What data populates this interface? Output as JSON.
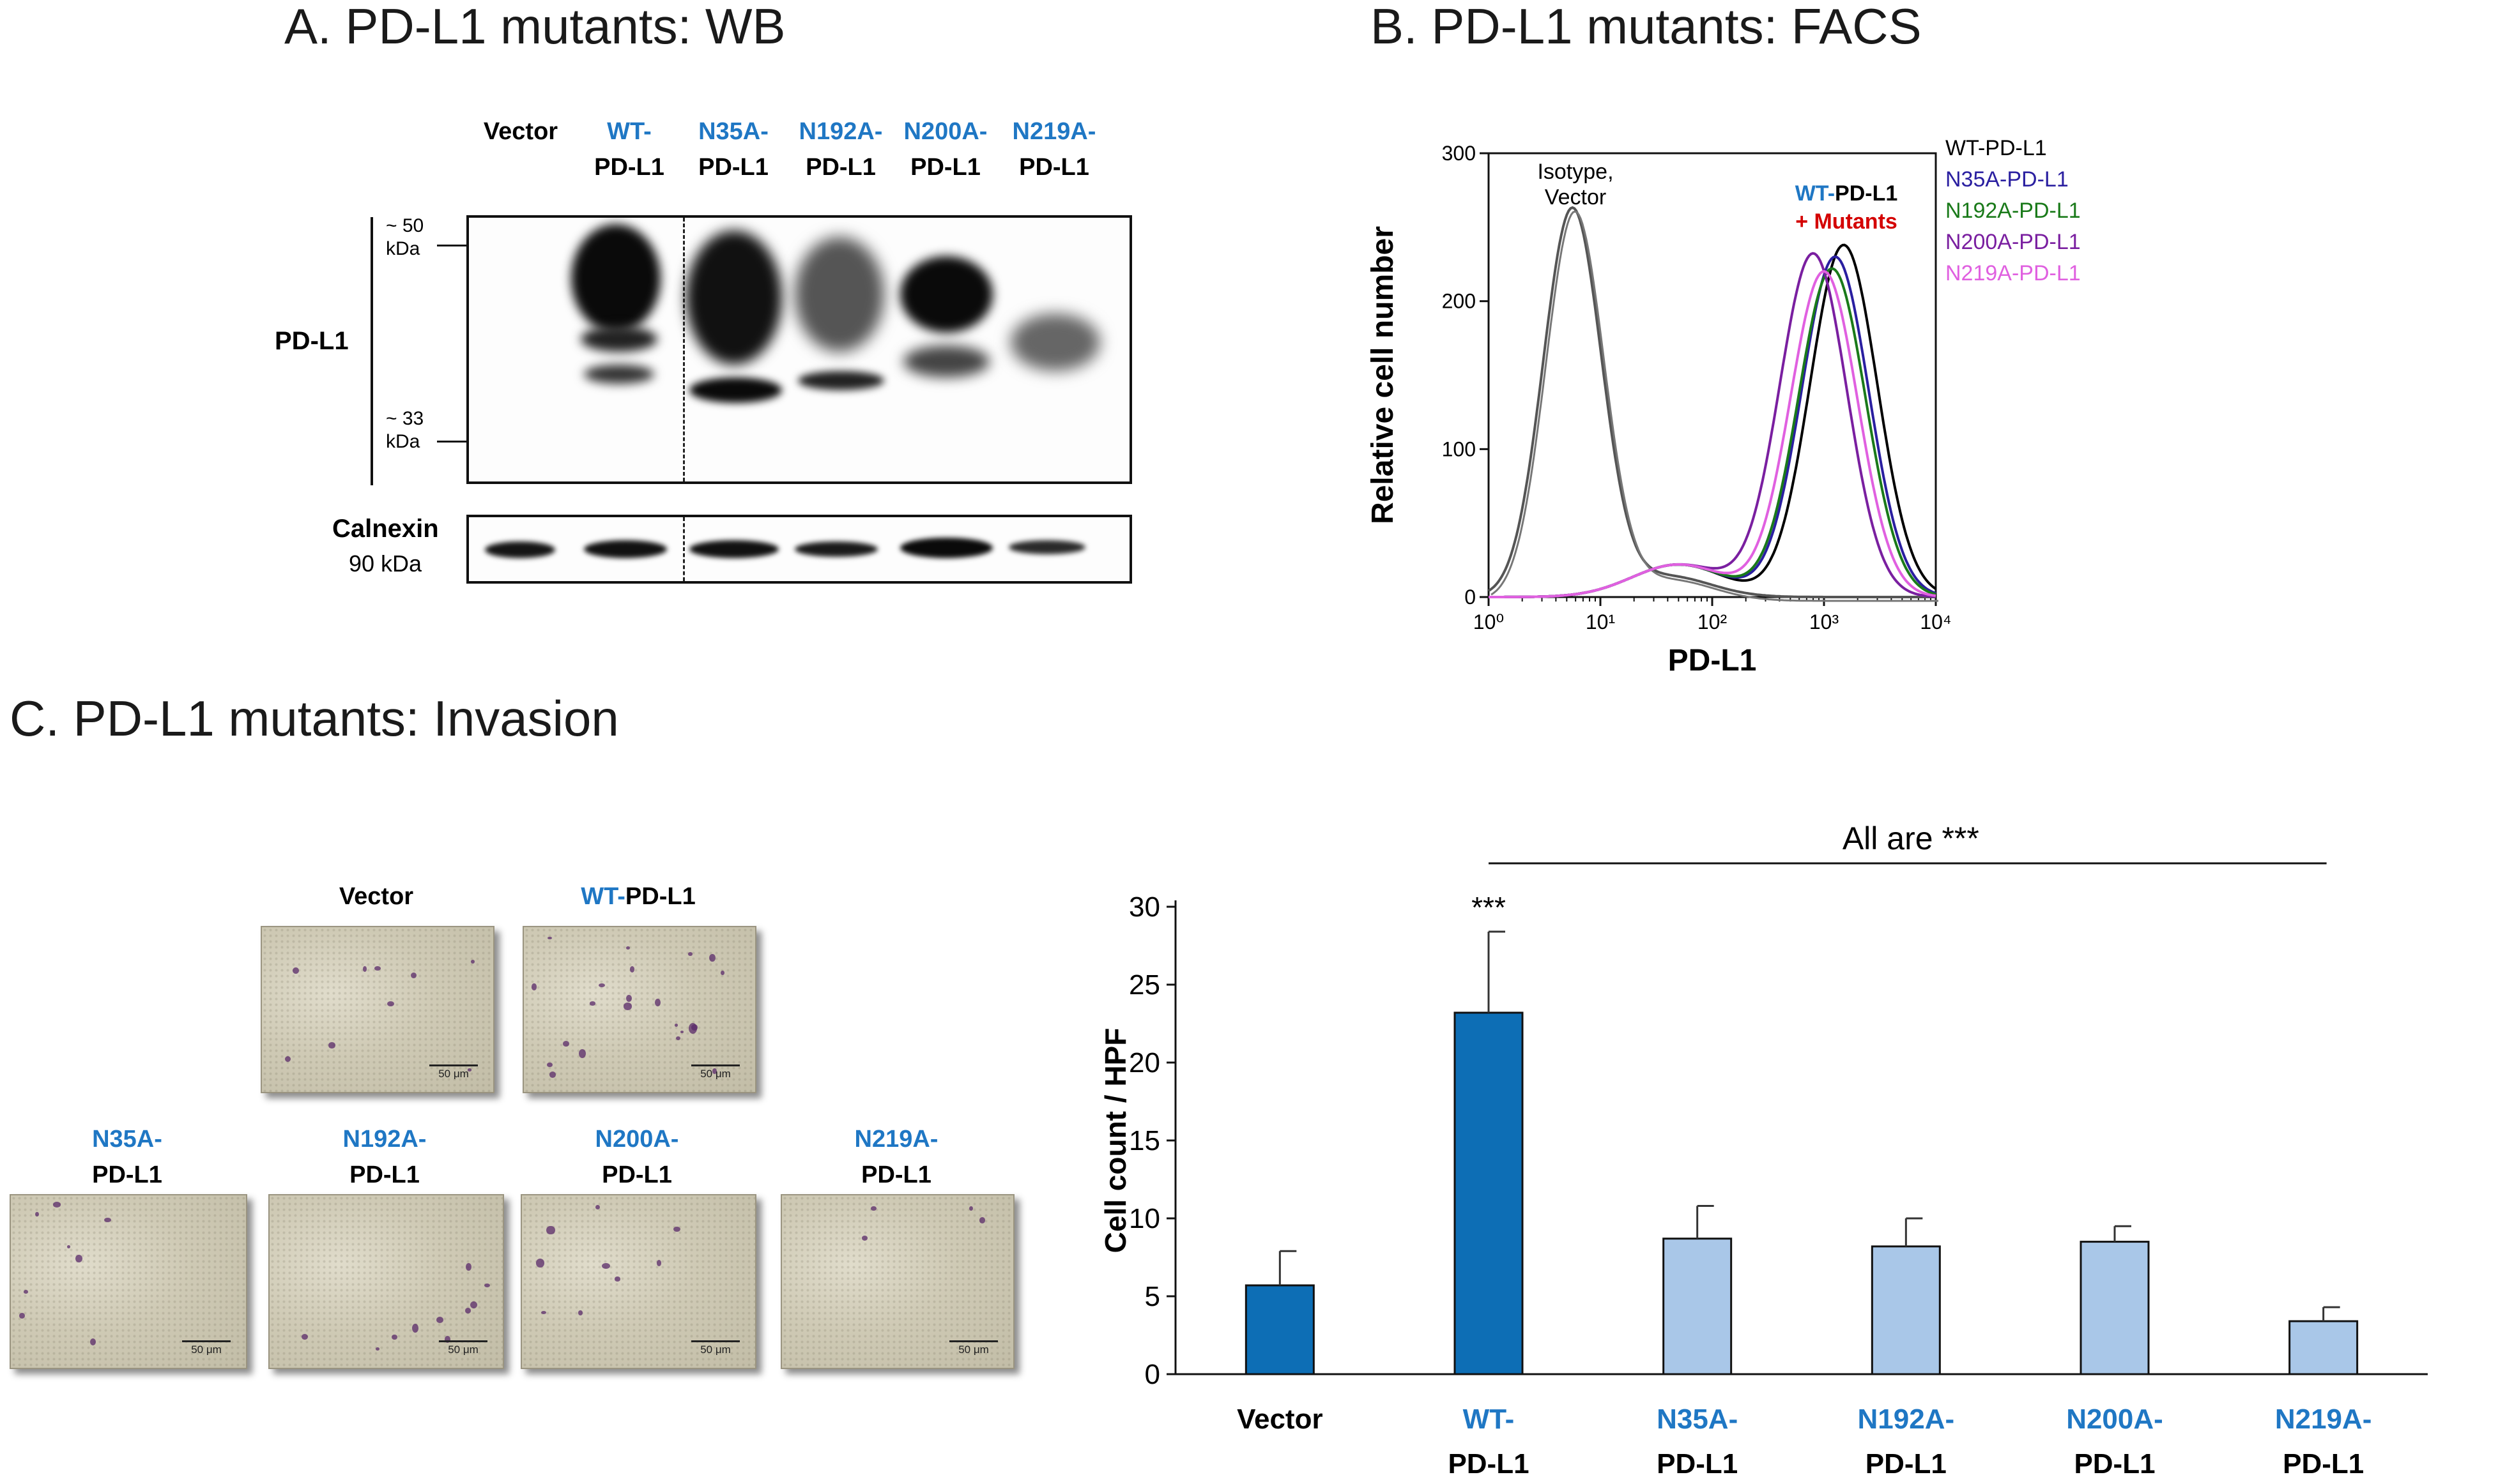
{
  "panel_a": {
    "title": "A. PD-L1 mutants: WB",
    "lanes": [
      {
        "top": "Vector",
        "bottom": "",
        "top_blue": false
      },
      {
        "top": "WT-",
        "bottom": "PD-L1",
        "top_blue": true
      },
      {
        "top": "N35A-",
        "bottom": "PD-L1",
        "top_blue": true
      },
      {
        "top": "N192A-",
        "bottom": "PD-L1",
        "top_blue": true
      },
      {
        "top": "N200A-",
        "bottom": "PD-L1",
        "top_blue": true
      },
      {
        "top": "N219A-",
        "bottom": "PD-L1",
        "top_blue": true
      }
    ],
    "marker_50": "~ 50",
    "marker_33": "~ 33",
    "kda": "kDa",
    "pdl1_label": "PD-L1",
    "calnexin_label": "Calnexin",
    "calnexin_kda": "90 kDa"
  },
  "panel_b": {
    "title": "B. PD-L1 mutants: FACS",
    "ylabel": "Relative cell number",
    "xlabel": "PD-L1",
    "yticks": [
      "0",
      "100",
      "200",
      "300"
    ],
    "xticks": [
      "10⁰",
      "10¹",
      "10²",
      "10³",
      "10⁴"
    ],
    "isotype_line1": "Isotype,",
    "isotype_line2": "Vector",
    "wt_label_blue": "WT-",
    "wt_label_black": "PD-L1",
    "mutants_label": "+ Mutants",
    "legend": [
      {
        "label": "WT-PD-L1",
        "color": "#000000"
      },
      {
        "label": "N35A-PD-L1",
        "color": "#2a1fa0"
      },
      {
        "label": "N192A-PD-L1",
        "color": "#1a7a1a"
      },
      {
        "label": "N200A-PD-L1",
        "color": "#7a1fa0"
      },
      {
        "label": "N219A-PD-L1",
        "color": "#e060e0"
      }
    ],
    "chart_data": {
      "type": "line",
      "xscale": "log",
      "xlim": [
        1,
        10000
      ],
      "ylim": [
        0,
        300
      ],
      "xlabel": "PD-L1",
      "ylabel": "Relative cell number",
      "series": [
        {
          "name": "Isotype, Vector",
          "color": "#555555",
          "peak_x": 5.6,
          "peak_y": 262,
          "width_decades": 0.26
        },
        {
          "name": "WT-PD-L1",
          "color": "#000000",
          "peak_x": 1500,
          "peak_y": 238,
          "width_decades": 0.3
        },
        {
          "name": "N35A-PD-L1",
          "color": "#2a1fa0",
          "peak_x": 1260,
          "peak_y": 230,
          "width_decades": 0.3
        },
        {
          "name": "N192A-PD-L1",
          "color": "#1a7a1a",
          "peak_x": 1180,
          "peak_y": 222,
          "width_decades": 0.3
        },
        {
          "name": "N200A-PD-L1",
          "color": "#7a1fa0",
          "peak_x": 800,
          "peak_y": 232,
          "width_decades": 0.3
        },
        {
          "name": "N219A-PD-L1",
          "color": "#e060e0",
          "peak_x": 1000,
          "peak_y": 220,
          "width_decades": 0.3
        }
      ]
    }
  },
  "panel_c": {
    "title": "C. PD-L1 mutants: Invasion",
    "micro_images": [
      {
        "top": "Vector",
        "bottom": "",
        "top_blue": false,
        "cells": 9
      },
      {
        "top": "WT-",
        "bottom": "PD-L1",
        "top_blue": true,
        "inline": true,
        "cells": 22
      },
      {
        "top": "N35A-",
        "bottom": "PD-L1",
        "top_blue": true,
        "cells": 8
      },
      {
        "top": "N192A-",
        "bottom": "PD-L1",
        "top_blue": true,
        "cells": 10
      },
      {
        "top": "N200A-",
        "bottom": "PD-L1",
        "top_blue": true,
        "cells": 9
      },
      {
        "top": "N219A-",
        "bottom": "PD-L1",
        "top_blue": true,
        "cells": 4
      }
    ],
    "scale_bar": "50 μm",
    "all_are": "All are ***",
    "significance": "***",
    "chart_data": {
      "type": "bar",
      "title": "",
      "ylabel": "Cell count / HPF",
      "xlabel": "",
      "ylim": [
        0,
        30
      ],
      "yticks": [
        0,
        5,
        10,
        15,
        20,
        25,
        30
      ],
      "categories": [
        {
          "top": "Vector",
          "bottom": "",
          "top_blue": false
        },
        {
          "top": "WT-",
          "bottom": "PD-L1",
          "top_blue": true
        },
        {
          "top": "N35A-",
          "bottom": "PD-L1",
          "top_blue": true
        },
        {
          "top": "N192A-",
          "bottom": "PD-L1",
          "top_blue": true
        },
        {
          "top": "N200A-",
          "bottom": "PD-L1",
          "top_blue": true
        },
        {
          "top": "N219A-",
          "bottom": "PD-L1",
          "top_blue": true
        }
      ],
      "values": [
        5.7,
        23.2,
        8.7,
        8.2,
        8.5,
        3.4
      ],
      "errors": [
        2.2,
        5.2,
        2.1,
        1.8,
        1.0,
        0.9
      ],
      "colors": [
        "#0d6eb5",
        "#0d6eb5",
        "#a9c7e8",
        "#a9c7e8",
        "#a9c7e8",
        "#a9c7e8"
      ]
    }
  }
}
